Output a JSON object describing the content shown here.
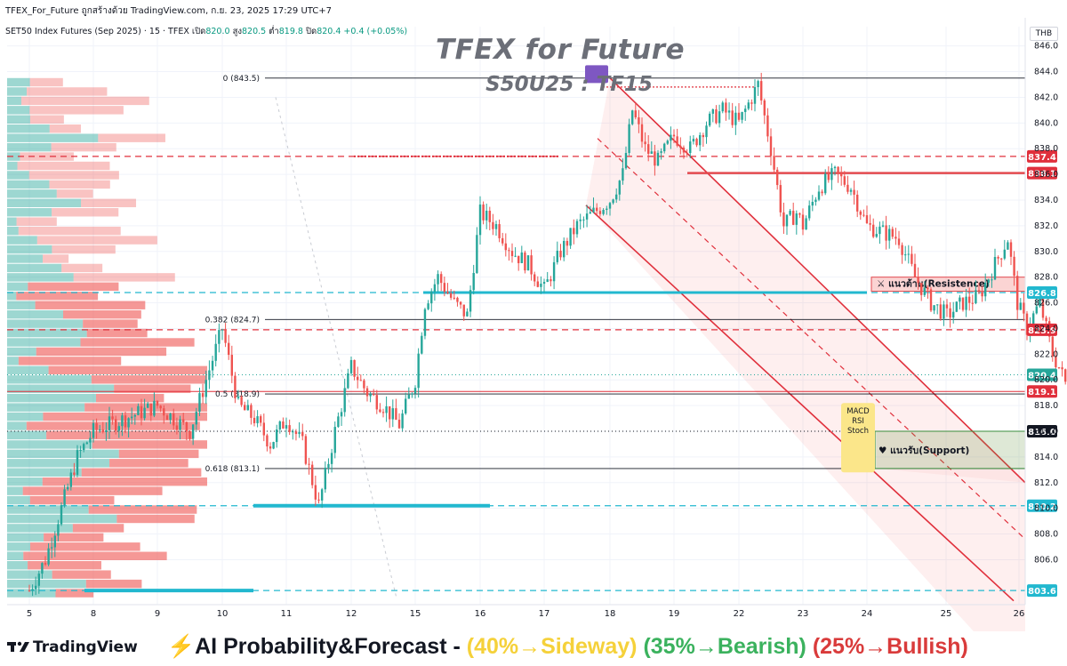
{
  "header": {
    "attribution": "TFEX_For_Future ถูกสร้างด้วย TradingView.com, ก.ย. 23, 2025 17:29 UTC+7",
    "symbol": "SET50 Index Futures (Sep 2025) · 15 · TFEX",
    "open_label": "เปิด",
    "open": "820.0",
    "high_label": "สูง",
    "high": "820.5",
    "low_label": "ต่ำ",
    "low": "819.8",
    "close_label": "ปิด",
    "close": "820.4",
    "change": "+0.4 (+0.05%)",
    "currency": "THB"
  },
  "titles": {
    "main": "TFEX for Future",
    "sub": "S50U25 : TF15"
  },
  "footer": {
    "logo": "TradingView",
    "forecast_prefix": "⚡AI Probability&Forecast - ",
    "sideway": "(40%→Sideway)",
    "bearish": "(35%→Bearish)",
    "bullish": "(25%→Bullish)"
  },
  "colors": {
    "up": "#26a69a",
    "down": "#ef5350",
    "candle_line": "#e0434a",
    "channel": "#e0303c",
    "cyan": "#22b8cf",
    "resistance": "#e34a4f",
    "support_box": "#4caf50",
    "grid": "#f0f3fa",
    "axis_text": "#131722"
  },
  "chart_data": {
    "type": "candlestick",
    "instrument": "S50U25",
    "timeframe": "15",
    "ylim": [
      802.5,
      847.5
    ],
    "y_ticks": [
      806,
      808,
      810,
      812,
      814,
      816,
      818,
      820,
      822,
      824,
      826,
      828,
      830,
      832,
      834,
      836,
      838,
      840,
      842,
      844,
      846
    ],
    "x_ticks": [
      "5",
      "8",
      "9",
      "10",
      "11",
      "12",
      "15",
      "16",
      "17",
      "18",
      "19",
      "22",
      "23",
      "24",
      "25",
      "26"
    ],
    "price_path": [
      [
        5,
        803.6
      ],
      [
        5.25,
        806
      ],
      [
        5.5,
        810
      ],
      [
        5.75,
        814
      ],
      [
        6,
        816
      ],
      [
        6.5,
        817
      ],
      [
        7,
        818
      ],
      [
        7.5,
        816
      ],
      [
        8,
        824
      ],
      [
        8.25,
        818
      ],
      [
        8.5,
        817
      ],
      [
        8.75,
        815
      ],
      [
        9,
        817
      ],
      [
        9.25,
        815
      ],
      [
        9.5,
        810.2
      ],
      [
        9.75,
        816
      ],
      [
        10,
        821
      ],
      [
        10.25,
        819
      ],
      [
        10.5,
        818
      ],
      [
        10.75,
        816.5
      ],
      [
        11,
        820
      ],
      [
        11.15,
        826
      ],
      [
        11.35,
        828
      ],
      [
        11.6,
        826
      ],
      [
        11.8,
        825
      ],
      [
        12,
        833
      ],
      [
        12.25,
        832
      ],
      [
        12.5,
        830
      ],
      [
        12.75,
        829
      ],
      [
        13,
        827
      ],
      [
        13.25,
        830
      ],
      [
        13.5,
        832
      ],
      [
        13.75,
        833
      ],
      [
        14,
        834
      ],
      [
        14.2,
        836
      ],
      [
        14.35,
        841
      ],
      [
        14.55,
        838
      ],
      [
        14.75,
        837
      ],
      [
        15,
        839
      ],
      [
        15.25,
        838
      ],
      [
        15.5,
        840
      ],
      [
        15.75,
        841
      ],
      [
        16,
        840
      ],
      [
        16.3,
        843
      ],
      [
        16.5,
        838
      ],
      [
        16.7,
        832
      ],
      [
        16.9,
        833
      ],
      [
        17,
        832
      ],
      [
        17.25,
        835
      ],
      [
        17.5,
        836
      ],
      [
        17.75,
        835
      ],
      [
        18,
        832
      ],
      [
        18.5,
        831
      ],
      [
        18.75,
        828
      ],
      [
        19,
        826
      ],
      [
        19.25,
        825
      ],
      [
        19.5,
        826
      ],
      [
        19.75,
        826.5
      ],
      [
        20,
        829
      ],
      [
        20.2,
        831
      ],
      [
        20.35,
        826
      ],
      [
        20.5,
        824
      ],
      [
        20.7,
        826
      ],
      [
        20.8,
        824
      ],
      [
        20.9,
        822
      ],
      [
        21,
        821
      ],
      [
        21.15,
        819.1
      ],
      [
        21.3,
        820.4
      ]
    ],
    "levels": [
      {
        "price": 837.4,
        "label": "837.4",
        "style": "dashed-red"
      },
      {
        "price": 836.1,
        "label": "836.1",
        "style": "solid-red"
      },
      {
        "price": 826.8,
        "label": "826.8",
        "style": "cyan"
      },
      {
        "price": 823.9,
        "label": "823.9",
        "style": "dashed-red"
      },
      {
        "price": 820.4,
        "label": "820.4",
        "style": "last-price"
      },
      {
        "price": 819.1,
        "label": "819.1",
        "style": "red"
      },
      {
        "price": 816.0,
        "label": "816.0",
        "style": "dotted-dark"
      },
      {
        "price": 810.2,
        "label": "810.2",
        "style": "cyan"
      },
      {
        "price": 803.6,
        "label": "803.6",
        "style": "cyan"
      }
    ],
    "fibonacci": [
      {
        "ratio": "0",
        "label": "0 (843.5)",
        "price": 843.5
      },
      {
        "ratio": "0.382",
        "label": "0.382 (824.7)",
        "price": 824.7
      },
      {
        "ratio": "0.5",
        "label": "0.5 (818.9)",
        "price": 818.9
      },
      {
        "ratio": "0.618",
        "label": "0.618 (813.1)",
        "price": 813.1
      }
    ],
    "zones": {
      "resistance": {
        "label": "แนวต้าน(Resistence)",
        "low": 826.9,
        "high": 828.0
      },
      "support": {
        "label": "แนวรับ(Support)",
        "low": 813.1,
        "high": 816.0
      }
    },
    "indicator_badge": [
      "MACD",
      "RSI",
      "Stoch"
    ],
    "volume_profile": {
      "buckets": 56
    }
  }
}
